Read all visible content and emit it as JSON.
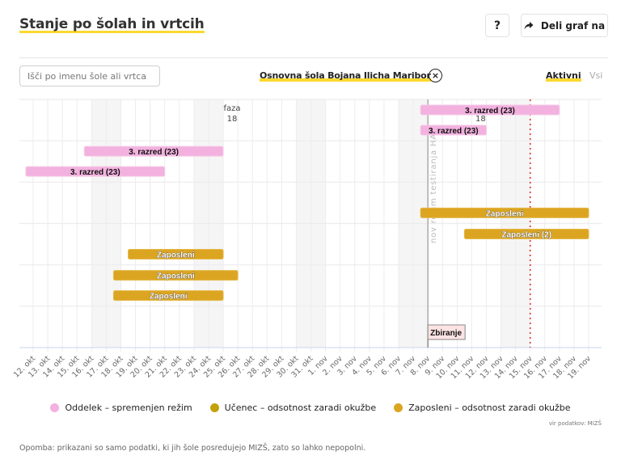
{
  "header": {
    "title": "Stanje po šolah in vrtcih",
    "help_label": "?",
    "share_label": "Deli graf na"
  },
  "filters": {
    "search_placeholder": "Išči po imenu šole ali vrtca",
    "search_value": "",
    "selected_school": "Osnovna šola Bojana Ilicha Maribor",
    "clear_label": "×",
    "active_label": "Aktivni",
    "all_label": "Vsi"
  },
  "colors": {
    "accent": "#fcd830",
    "oddelek": "#f2b1de",
    "ucenec": "#c2a20c",
    "zaposleni": "#dca521",
    "today_line": "#e8302a"
  },
  "chart_data": {
    "type": "timeline",
    "title": "",
    "xlabel": "",
    "ylabel": "",
    "x_start": "2020-10-12",
    "x_end": "2020-11-19",
    "x_ticks": [
      "12. okt",
      "13. okt",
      "14. okt",
      "15. okt",
      "16. okt",
      "17. okt",
      "18. okt",
      "19. okt",
      "20. okt",
      "21. okt",
      "22. okt",
      "23. okt",
      "24. okt",
      "25. okt",
      "26. okt",
      "27. okt",
      "28. okt",
      "29. okt",
      "30. okt",
      "31. okt",
      "1. nov",
      "2. nov",
      "3. nov",
      "4. nov",
      "5. nov",
      "6. nov",
      "7. nov",
      "8. nov",
      "9. nov",
      "10. nov",
      "11. nov",
      "12. nov",
      "13. nov",
      "14. nov",
      "15. nov",
      "16. nov",
      "17. nov",
      "18. nov",
      "19. nov"
    ],
    "weekends": [
      [
        "2020-10-17",
        "2020-10-18"
      ],
      [
        "2020-10-24",
        "2020-10-25"
      ],
      [
        "2020-10-31",
        "2020-11-01"
      ],
      [
        "2020-11-07",
        "2020-11-08"
      ],
      [
        "2020-11-14",
        "2020-11-15"
      ]
    ],
    "rows": 6,
    "bars": [
      {
        "label": "3. razred (23)",
        "category": "oddelek",
        "start": "2020-11-08",
        "end": "2020-11-17",
        "row": 0,
        "lane": 0
      },
      {
        "label": "3. razred (23)",
        "category": "oddelek",
        "start": "2020-11-08",
        "end": "2020-11-12",
        "row": 0,
        "lane": 1
      },
      {
        "label": "3. razred (23)",
        "category": "oddelek",
        "start": "2020-10-16",
        "end": "2020-10-25",
        "row": 1,
        "lane": 0
      },
      {
        "label": "3. razred (23)",
        "category": "oddelek",
        "start": "2020-10-12",
        "end": "2020-10-21",
        "row": 1,
        "lane": 1
      },
      {
        "label": "Zaposleni",
        "category": "zaposleni",
        "start": "2020-11-08",
        "end": "2020-11-19",
        "row": 2,
        "lane": 1
      },
      {
        "label": "Zaposleni (2)",
        "category": "zaposleni",
        "start": "2020-11-11",
        "end": "2020-11-19",
        "row": 3,
        "lane": 0
      },
      {
        "label": "Zaposleni",
        "category": "zaposleni",
        "start": "2020-10-19",
        "end": "2020-10-25",
        "row": 3,
        "lane": 1
      },
      {
        "label": "Zaposleni",
        "category": "zaposleni",
        "start": "2020-10-18",
        "end": "2020-10-26",
        "row": 4,
        "lane": 0
      },
      {
        "label": "Zaposleni",
        "category": "zaposleni",
        "start": "2020-10-18",
        "end": "2020-10-25",
        "row": 4,
        "lane": 1
      }
    ],
    "annotations": [
      {
        "type": "phase_text",
        "date": "2020-10-25",
        "lines": [
          "faza",
          "18"
        ]
      },
      {
        "type": "phase_text",
        "date": "2020-11-11",
        "lines": [
          "",
          "18"
        ]
      },
      {
        "type": "vertical_line",
        "date": "2020-11-08",
        "label": "nov režim testiranja HAT",
        "style": "solid"
      },
      {
        "type": "vertical_line",
        "date": "2020-11-15",
        "label": "",
        "style": "dotted-red"
      },
      {
        "type": "flag",
        "date": "2020-11-08",
        "label": "Zbiranje"
      }
    ],
    "legend_position": "bottom",
    "grid": true
  },
  "legend": [
    {
      "label": "Oddelek – spremenjen režim",
      "color": "#f2b1de"
    },
    {
      "label": "Učenec – odsotnost zaradi okužbe",
      "color": "#c2a20c"
    },
    {
      "label": "Zaposleni – odsotnost zaradi okužbe",
      "color": "#dca521"
    }
  ],
  "footer": {
    "source": "vir podatkov: MIZŠ",
    "note": "Opomba: prikazani so samo podatki, ki jih šole posredujejo MIZŠ, zato so lahko nepopolni."
  }
}
